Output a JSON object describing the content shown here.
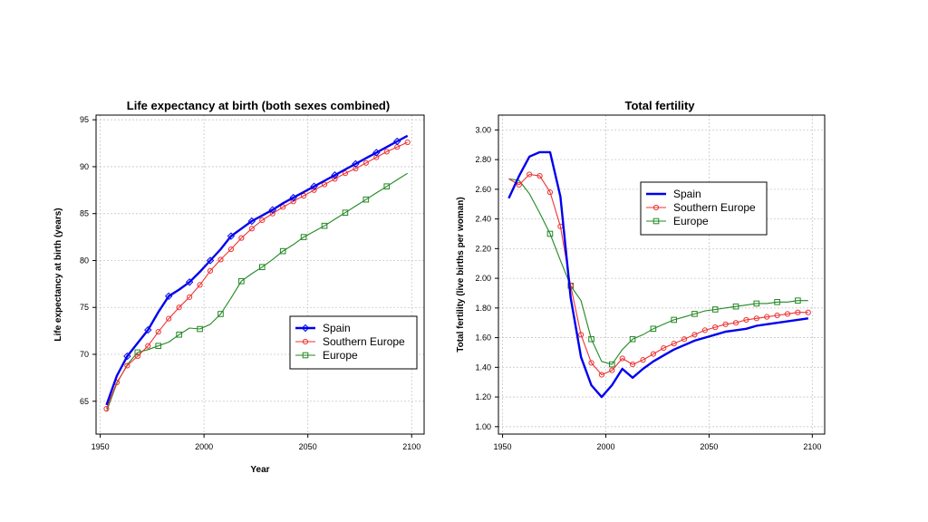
{
  "colors": {
    "spain": "#0000ee",
    "southern_europe": "#ee3333",
    "europe": "#228822",
    "grid": "#c8c8c8"
  },
  "chart_data": [
    {
      "type": "line",
      "title": "Life expectancy at birth (both sexes combined)",
      "xlabel": "Year",
      "ylabel": "Life expectancy at birth (years)",
      "xlim": [
        1948,
        2106
      ],
      "ylim": [
        61.5,
        95.5
      ],
      "xticks": [
        1950,
        2000,
        2050,
        2100
      ],
      "xtick_labels": [
        "1950",
        "2000",
        "2050",
        "2100"
      ],
      "yticks": [
        65,
        70,
        75,
        80,
        85,
        90,
        95
      ],
      "ytick_labels": [
        "65",
        "70",
        "75",
        "80",
        "85",
        "90",
        "95"
      ],
      "grid": true,
      "legend_position": "bottom-right",
      "series": [
        {
          "name": "Spain",
          "marker": "diamond",
          "x": [
            1953,
            1958,
            1963,
            1968,
            1973,
            1978,
            1983,
            1988,
            1993,
            1998,
            2003,
            2008,
            2013,
            2018,
            2023,
            2028,
            2033,
            2038,
            2043,
            2048,
            2053,
            2058,
            2063,
            2068,
            2073,
            2078,
            2083,
            2088,
            2093,
            2098
          ],
          "y": [
            64.6,
            67.7,
            69.8,
            71.2,
            72.6,
            74.5,
            76.2,
            76.9,
            77.7,
            78.8,
            80.0,
            81.2,
            82.6,
            83.4,
            84.2,
            84.8,
            85.4,
            86.1,
            86.7,
            87.3,
            87.9,
            88.5,
            89.1,
            89.7,
            90.3,
            90.9,
            91.5,
            92.1,
            92.7,
            93.3
          ],
          "marker_x": [
            1963,
            1973,
            1983,
            1993,
            2003,
            2013,
            2023,
            2033,
            2043,
            2053,
            2063,
            2073,
            2083,
            2093
          ],
          "marker_y": [
            69.8,
            72.6,
            76.2,
            77.7,
            80.0,
            82.6,
            84.2,
            85.4,
            86.7,
            87.9,
            89.1,
            90.3,
            91.5,
            92.7
          ]
        },
        {
          "name": "Southern Europe",
          "marker": "circle",
          "x": [
            1953,
            1958,
            1963,
            1968,
            1973,
            1978,
            1983,
            1988,
            1993,
            1998,
            2003,
            2008,
            2013,
            2018,
            2023,
            2028,
            2033,
            2038,
            2043,
            2048,
            2053,
            2058,
            2063,
            2068,
            2073,
            2078,
            2083,
            2088,
            2093,
            2098
          ],
          "y": [
            64.2,
            67.0,
            68.8,
            69.8,
            70.9,
            72.4,
            73.8,
            75.0,
            76.1,
            77.4,
            78.9,
            80.1,
            81.2,
            82.4,
            83.4,
            84.3,
            85.0,
            85.7,
            86.3,
            86.9,
            87.5,
            88.1,
            88.7,
            89.3,
            89.8,
            90.4,
            91.0,
            91.6,
            92.1,
            92.6
          ],
          "marker_x": [
            1953,
            1958,
            1963,
            1968,
            1973,
            1978,
            1983,
            1988,
            1993,
            1998,
            2003,
            2008,
            2013,
            2018,
            2023,
            2028,
            2033,
            2038,
            2043,
            2048,
            2053,
            2058,
            2063,
            2068,
            2073,
            2078,
            2083,
            2088,
            2093,
            2098
          ],
          "marker_y": [
            64.2,
            67.0,
            68.8,
            69.8,
            70.9,
            72.4,
            73.8,
            75.0,
            76.1,
            77.4,
            78.9,
            80.1,
            81.2,
            82.4,
            83.4,
            84.3,
            85.0,
            85.7,
            86.3,
            86.9,
            87.5,
            88.1,
            88.7,
            89.3,
            89.8,
            90.4,
            91.0,
            91.6,
            92.1,
            92.6
          ]
        },
        {
          "name": "Europe",
          "marker": "square",
          "x": [
            1953,
            1958,
            1963,
            1968,
            1973,
            1978,
            1983,
            1988,
            1993,
            1998,
            2003,
            2008,
            2013,
            2018,
            2023,
            2028,
            2033,
            2038,
            2043,
            2048,
            2053,
            2058,
            2063,
            2068,
            2073,
            2078,
            2083,
            2088,
            2093,
            2098
          ],
          "y": [
            63.9,
            66.9,
            68.9,
            70.2,
            70.5,
            70.9,
            71.3,
            72.1,
            72.8,
            72.7,
            73.2,
            74.3,
            76.0,
            77.8,
            78.6,
            79.3,
            80.1,
            81.0,
            81.7,
            82.5,
            83.1,
            83.7,
            84.4,
            85.1,
            85.8,
            86.5,
            87.2,
            87.9,
            88.6,
            89.3
          ],
          "marker_x": [
            1968,
            1978,
            1988,
            1998,
            2008,
            2018,
            2028,
            2038,
            2048,
            2058,
            2068,
            2078,
            2088
          ],
          "marker_y": [
            70.2,
            70.9,
            72.1,
            72.7,
            74.3,
            77.8,
            79.3,
            81.0,
            82.5,
            83.7,
            85.1,
            86.5,
            87.9
          ]
        }
      ]
    },
    {
      "type": "line",
      "title": "Total fertility",
      "xlabel": "",
      "ylabel": "Total fertility (live births per woman)",
      "xlim": [
        1948,
        2106
      ],
      "ylim": [
        0.95,
        3.1
      ],
      "xticks": [
        1950,
        2000,
        2050,
        2100
      ],
      "xtick_labels": [
        "1950",
        "2000",
        "2050",
        "2100"
      ],
      "yticks": [
        1.0,
        1.2,
        1.4,
        1.6,
        1.8,
        2.0,
        2.2,
        2.4,
        2.6,
        2.8,
        3.0
      ],
      "ytick_labels": [
        "1.00",
        "1.20",
        "1.40",
        "1.60",
        "1.80",
        "2.00",
        "2.20",
        "2.40",
        "2.60",
        "2.80",
        "3.00"
      ],
      "grid": true,
      "legend_position": "top-center",
      "series": [
        {
          "name": "Spain",
          "marker": "none",
          "x": [
            1953,
            1958,
            1963,
            1968,
            1973,
            1978,
            1983,
            1988,
            1993,
            1998,
            2003,
            2008,
            2013,
            2018,
            2023,
            2028,
            2033,
            2038,
            2043,
            2048,
            2053,
            2058,
            2063,
            2068,
            2073,
            2078,
            2083,
            2088,
            2093,
            2098
          ],
          "y": [
            2.54,
            2.69,
            2.82,
            2.85,
            2.85,
            2.55,
            1.87,
            1.47,
            1.28,
            1.2,
            1.28,
            1.39,
            1.33,
            1.39,
            1.44,
            1.48,
            1.52,
            1.55,
            1.58,
            1.6,
            1.62,
            1.64,
            1.65,
            1.66,
            1.68,
            1.69,
            1.7,
            1.71,
            1.72,
            1.73
          ],
          "marker_x": [],
          "marker_y": []
        },
        {
          "name": "Southern Europe",
          "marker": "circle",
          "x": [
            1953,
            1958,
            1963,
            1968,
            1973,
            1978,
            1983,
            1988,
            1993,
            1998,
            2003,
            2008,
            2013,
            2018,
            2023,
            2028,
            2033,
            2038,
            2043,
            2048,
            2053,
            2058,
            2063,
            2068,
            2073,
            2078,
            2083,
            2088,
            2093,
            2098
          ],
          "y": [
            2.67,
            2.63,
            2.7,
            2.69,
            2.58,
            2.35,
            1.95,
            1.62,
            1.43,
            1.35,
            1.38,
            1.46,
            1.42,
            1.45,
            1.49,
            1.53,
            1.56,
            1.59,
            1.62,
            1.65,
            1.67,
            1.69,
            1.7,
            1.72,
            1.73,
            1.74,
            1.75,
            1.76,
            1.77,
            1.77
          ],
          "marker_x": [
            1958,
            1963,
            1968,
            1973,
            1978,
            1983,
            1988,
            1993,
            1998,
            2003,
            2008,
            2013,
            2018,
            2023,
            2028,
            2033,
            2038,
            2043,
            2048,
            2053,
            2058,
            2063,
            2068,
            2073,
            2078,
            2083,
            2088,
            2093,
            2098
          ],
          "marker_y": [
            2.63,
            2.7,
            2.69,
            2.58,
            2.35,
            1.95,
            1.62,
            1.43,
            1.35,
            1.38,
            1.46,
            1.42,
            1.45,
            1.49,
            1.53,
            1.56,
            1.59,
            1.62,
            1.65,
            1.67,
            1.69,
            1.7,
            1.72,
            1.73,
            1.74,
            1.75,
            1.76,
            1.77,
            1.77
          ]
        },
        {
          "name": "Europe",
          "marker": "square",
          "x": [
            1953,
            1958,
            1963,
            1968,
            1973,
            1978,
            1983,
            1988,
            1993,
            1998,
            2003,
            2008,
            2013,
            2018,
            2023,
            2028,
            2033,
            2038,
            2043,
            2048,
            2053,
            2058,
            2063,
            2068,
            2073,
            2078,
            2083,
            2088,
            2093,
            2098
          ],
          "y": [
            2.67,
            2.66,
            2.57,
            2.44,
            2.3,
            2.12,
            1.95,
            1.85,
            1.59,
            1.44,
            1.42,
            1.52,
            1.59,
            1.62,
            1.66,
            1.69,
            1.72,
            1.74,
            1.76,
            1.78,
            1.79,
            1.8,
            1.81,
            1.82,
            1.83,
            1.83,
            1.84,
            1.84,
            1.85,
            1.85
          ],
          "marker_x": [
            1973,
            1983,
            1993,
            2003,
            2013,
            2023,
            2033,
            2043,
            2053,
            2063,
            2073,
            2083,
            2093
          ],
          "marker_y": [
            2.3,
            1.95,
            1.59,
            1.42,
            1.59,
            1.66,
            1.72,
            1.76,
            1.79,
            1.81,
            1.83,
            1.84,
            1.85
          ]
        }
      ]
    }
  ]
}
